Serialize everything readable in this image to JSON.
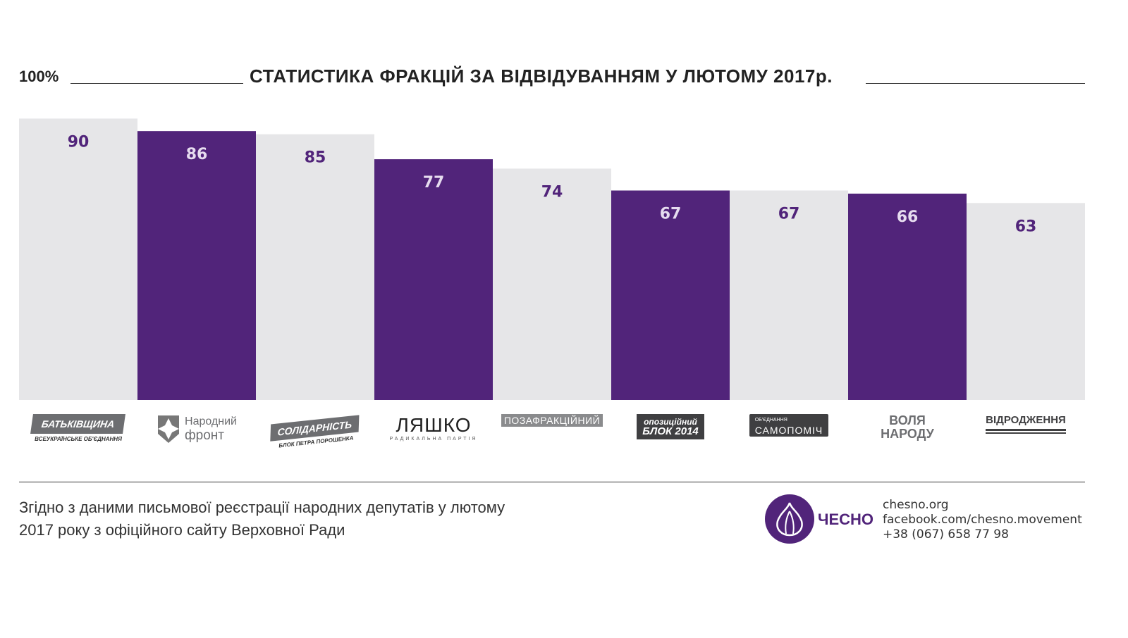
{
  "chart_data": {
    "type": "bar",
    "title": "СТАТИСТИКА ФРАКЦІЙ ЗА ВІДВІДУВАННЯМ У ЛЮТОМУ 2017р.",
    "ymax_label": "100%",
    "ylim": [
      0,
      100
    ],
    "grid": false,
    "categories": [
      "Батьківщина",
      "Народний фронт",
      "Солідарність",
      "Ляшко",
      "Позафракційний",
      "Опозиційний блок",
      "Самопоміч",
      "Воля народу",
      "Відродження"
    ],
    "values": [
      90,
      86,
      85,
      77,
      74,
      67,
      67,
      66,
      63
    ],
    "colors": {
      "light": "#e6e6e8",
      "dark": "#51247a",
      "light_label": "#51247a",
      "dark_label": "#e6dcef"
    }
  },
  "logos": [
    {
      "main": "БАТЬКІВЩИНА",
      "sub": "ВСЕУКРАЇНСЬКЕ ОБ'ЄДНАННЯ"
    },
    {
      "main": "Народний",
      "sub": "фронт"
    },
    {
      "main": "СОЛІДАРНІСТЬ",
      "sub": "БЛОК ПЕТРА ПОРОШЕНКА"
    },
    {
      "main": "ЛЯШКО",
      "sub": "РАДИКАЛЬНА ПАРТІЯ"
    },
    {
      "main": "ПОЗАФРАКЦІЙНИЙ",
      "sub": ""
    },
    {
      "main": "опозиційний",
      "sub": "БЛОК 2014"
    },
    {
      "main": "САМОПОМІЧ",
      "sub": "ОБ'ЄДНАННЯ"
    },
    {
      "main": "ВОЛЯ",
      "sub": "НАРОДУ"
    },
    {
      "main": "ВІДРОДЖЕННЯ",
      "sub": ""
    }
  ],
  "footer": {
    "source_line1": "Згідно з даними письмової реєстрації народних депутатів  у лютому",
    "source_line2": "2017 року з офіційного сайту Верховної Ради",
    "brand": "ЧЕСНО",
    "site": "chesno.org",
    "facebook": "facebook.com/chesno.movement",
    "phone": "+38 (067) 658 77 98"
  }
}
